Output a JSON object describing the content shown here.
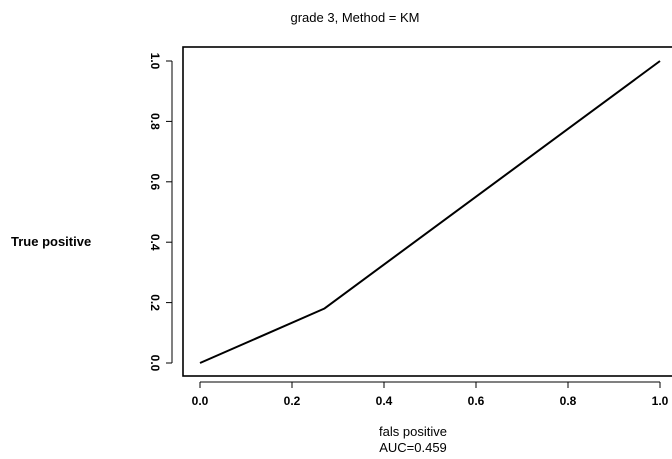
{
  "chart_data": {
    "type": "line",
    "title": "grade 3, Method = KM",
    "xlabel": "fals positive",
    "ylabel": "True positive",
    "annotation": "AUC=0.459",
    "xlim": [
      0,
      1
    ],
    "ylim": [
      0,
      1
    ],
    "x_ticks": [
      "0.0",
      "0.2",
      "0.4",
      "0.6",
      "0.8",
      "1.0"
    ],
    "y_ticks": [
      "0.0",
      "0.2",
      "0.4",
      "0.6",
      "0.8",
      "1.0"
    ],
    "grid": false,
    "series": [
      {
        "x": [
          0,
          0.27,
          1
        ],
        "y": [
          0,
          0.18,
          1
        ]
      }
    ]
  }
}
